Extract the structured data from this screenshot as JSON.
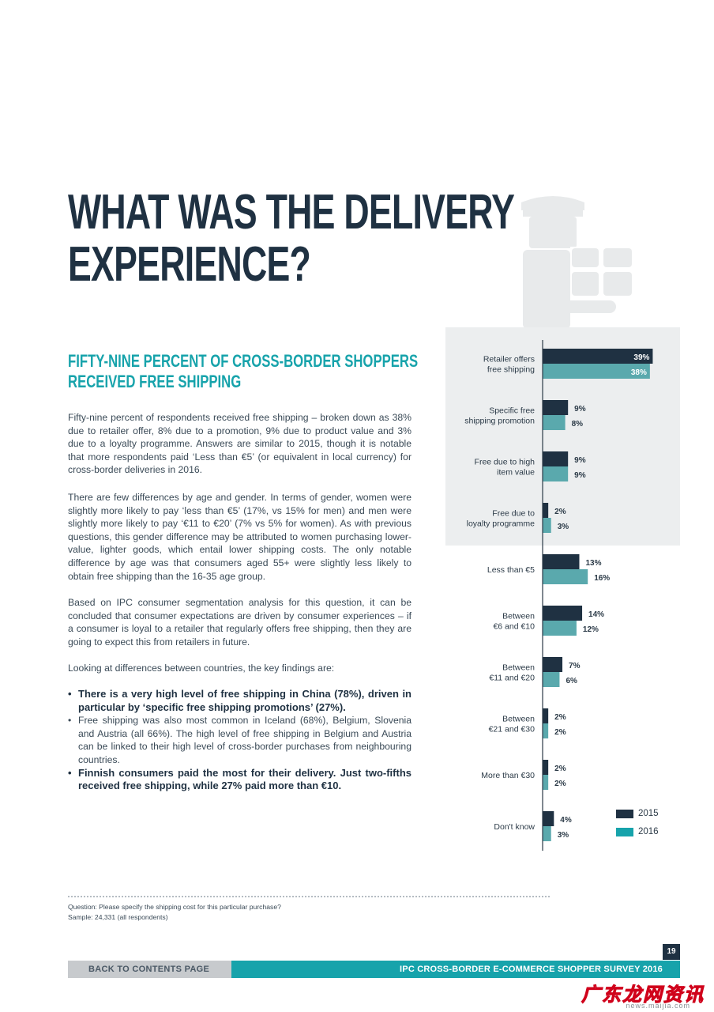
{
  "title": {
    "line1": "WHAT WAS THE DELIVERY",
    "line2": "EXPERIENCE?"
  },
  "subtitle": {
    "line1": "FIFTY-NINE PERCENT OF CROSS-BORDER SHOPPERS",
    "line2": "RECEIVED FREE SHIPPING"
  },
  "paragraphs": [
    "Fifty-nine percent of respondents received free shipping – broken down as 38% due to retailer offer, 8% due to a promotion, 9% due to product value and 3% due to a loyalty programme. Answers are similar to 2015, though it is notable that more respondents paid ‘Less than €5’ (or equivalent in local currency) for cross-border deliveries in 2016.",
    "There are few differences by age and gender. In terms of gender, women were slightly more likely to pay ‘less than €5’ (17%, vs 15% for men) and men were slightly more likely to pay ‘€11 to €20’ (7% vs 5% for women). As with previous questions, this gender difference may be attributed to women purchasing lower-value, lighter goods, which entail lower shipping costs. The only notable difference by age was that consumers aged 55+ were slightly less likely to obtain free shipping than the 16-35 age group.",
    "Based on IPC consumer segmentation analysis for this question, it can be concluded that consumer expectations are driven by consumer experiences – if a consumer is loyal to a retailer that regularly offers free shipping, then they are going to expect this from retailers in future.",
    "Looking at differences between countries, the key findings are:"
  ],
  "bullets": [
    {
      "text": "There is a very high level of free shipping in China (78%), driven in particular by ‘specific free shipping promotions’ (27%).",
      "bold": true
    },
    {
      "text": "Free shipping was also most common in Iceland (68%), Belgium, Slovenia and Austria (all 66%). The high level of free shipping in Belgium and Austria can be linked to their high level of cross-border purchases from neighbouring countries.",
      "bold": false
    },
    {
      "text": "Finnish consumers paid the most for their delivery. Just two-fifths received free shipping, while 27% paid more than €10.",
      "bold": true
    }
  ],
  "chart_data": {
    "type": "bar",
    "orientation": "horizontal",
    "categories": [
      [
        "Retailer offers",
        "free shipping"
      ],
      [
        "Specific free",
        "shipping promotion"
      ],
      [
        "Free due to high",
        "item value"
      ],
      [
        "Free due to",
        "loyalty programme"
      ],
      [
        "Less than €5"
      ],
      [
        "Between",
        "€6 and €10"
      ],
      [
        "Between",
        "€11 and €20"
      ],
      [
        "Between",
        "€21 and €30"
      ],
      [
        "More than €30"
      ],
      [
        "Don't know"
      ]
    ],
    "series": [
      {
        "name": "2015",
        "values": [
          39,
          9,
          9,
          2,
          13,
          14,
          7,
          2,
          2,
          4
        ],
        "color": "#1f3142"
      },
      {
        "name": "2016",
        "values": [
          38,
          8,
          9,
          3,
          16,
          12,
          6,
          2,
          2,
          3
        ],
        "color": "#5aa9ad"
      }
    ],
    "unit": "%",
    "xlim": [
      0,
      40
    ],
    "highlighted_group": "free shipping categories (first four)"
  },
  "legend": [
    {
      "label": "2015",
      "color": "#1f3142"
    },
    {
      "label": "2016",
      "color": "#17a3ab"
    }
  ],
  "footnote": {
    "question": "Question: Please specify the shipping cost for this particular purchase?",
    "sample": "Sample: 24,331 (all respondents)"
  },
  "footer": {
    "back_label": "BACK TO CONTENTS PAGE",
    "survey_title": "IPC CROSS-BORDER E-COMMERCE SHOPPER SURVEY 2016",
    "page_number": "19"
  },
  "watermark": {
    "main": "广东龙网资讯",
    "sub": "news.maijia.com"
  }
}
